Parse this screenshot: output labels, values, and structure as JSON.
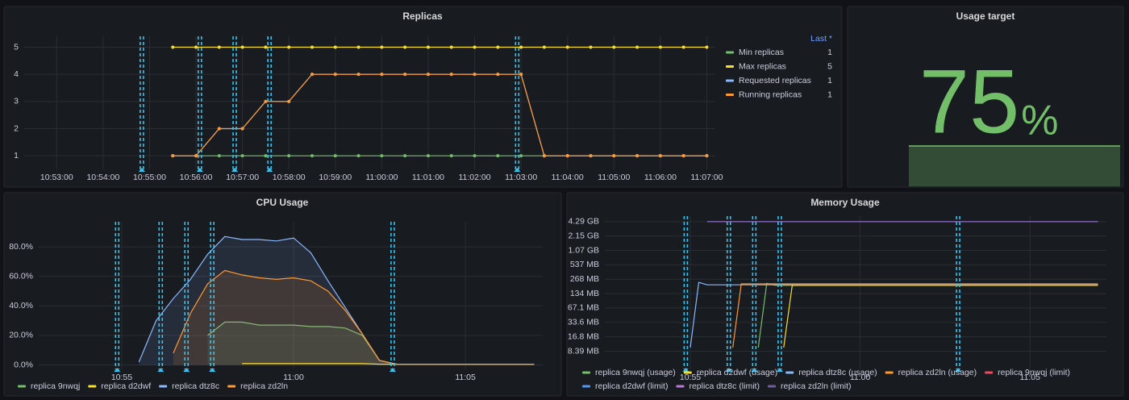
{
  "chart_data": [
    {
      "type": "line",
      "title": "Replicas",
      "x": [
        "10:55:30",
        "10:56:00",
        "10:56:30",
        "10:57:00",
        "10:57:30",
        "10:58:00",
        "10:58:30",
        "10:59:00",
        "10:59:30",
        "11:00:00",
        "11:00:30",
        "11:01:00",
        "11:01:30",
        "11:02:00",
        "11:02:30",
        "11:03:00",
        "11:03:30",
        "11:04:00",
        "11:04:30",
        "11:05:00",
        "11:05:30",
        "11:06:00",
        "11:06:30",
        "11:07:00"
      ],
      "series": [
        {
          "name": "Min replicas",
          "color": "#73bf69",
          "last": "1",
          "values": [
            1,
            1,
            1,
            1,
            1,
            1,
            1,
            1,
            1,
            1,
            1,
            1,
            1,
            1,
            1,
            1,
            1,
            1,
            1,
            1,
            1,
            1,
            1,
            1
          ]
        },
        {
          "name": "Max replicas",
          "color": "#fade2a",
          "last": "5",
          "values": [
            5,
            5,
            5,
            5,
            5,
            5,
            5,
            5,
            5,
            5,
            5,
            5,
            5,
            5,
            5,
            5,
            5,
            5,
            5,
            5,
            5,
            5,
            5,
            5
          ]
        },
        {
          "name": "Requested replicas",
          "color": "#8ab8ff",
          "last": "1",
          "values": [
            1,
            1,
            2,
            2,
            3,
            3,
            4,
            4,
            4,
            4,
            4,
            4,
            4,
            4,
            4,
            4,
            1,
            1,
            1,
            1,
            1,
            1,
            1,
            1
          ]
        },
        {
          "name": "Running replicas",
          "color": "#ff9830",
          "last": "1",
          "values": [
            1,
            1,
            2,
            2,
            3,
            3,
            4,
            4,
            4,
            4,
            4,
            4,
            4,
            4,
            4,
            4,
            1,
            1,
            1,
            1,
            1,
            1,
            1,
            1
          ]
        }
      ],
      "legend_header": "Last *",
      "legend": "right",
      "points": true,
      "grid": true,
      "xlim": [
        "10:52:18",
        "11:07:11"
      ],
      "xticks": [
        "10:53:00",
        "10:54:00",
        "10:55:00",
        "10:56:00",
        "10:57:00",
        "10:58:00",
        "10:59:00",
        "11:00:00",
        "11:01:00",
        "11:02:00",
        "11:03:00",
        "11:04:00",
        "11:05:00",
        "11:06:00",
        "11:07:00"
      ],
      "ylim": [
        0.5,
        5.4
      ],
      "yticks": [
        1,
        2,
        3,
        4,
        5
      ],
      "annotations": [
        "10:54:50",
        "10:56:05",
        "10:56:50",
        "10:57:35",
        "11:02:55"
      ],
      "annotation_color": "#33c4f2"
    },
    {
      "type": "stat",
      "title": "Usage target",
      "value": 75,
      "unit": "%",
      "color": "#73bf69"
    },
    {
      "type": "line",
      "title": "CPU Usage",
      "x": [
        "10:55:30",
        "10:56:00",
        "10:56:30",
        "10:57:00",
        "10:57:30",
        "10:58:00",
        "10:58:30",
        "10:59:00",
        "10:59:30",
        "11:00:00",
        "11:00:30",
        "11:01:00",
        "11:01:30",
        "11:02:00",
        "11:02:30",
        "11:03:00",
        "11:03:30",
        "11:04:00",
        "11:04:30",
        "11:05:00",
        "11:05:30",
        "11:06:00",
        "11:06:30",
        "11:07:00"
      ],
      "series": [
        {
          "name": "replica 9nwqj",
          "color": "#73bf69",
          "values": [
            null,
            null,
            null,
            null,
            20,
            29,
            29,
            27,
            27,
            27,
            26,
            26,
            25,
            20,
            3,
            0.5,
            0.5,
            0.5,
            0.5,
            0.5,
            0.5,
            0.5,
            0.5,
            0.5
          ]
        },
        {
          "name": "replica d2dwf",
          "color": "#fade2a",
          "values": [
            null,
            null,
            null,
            null,
            null,
            null,
            1,
            1,
            1,
            1,
            1,
            1,
            1,
            1,
            0.5,
            0.5,
            0.5,
            0.5,
            0.5,
            0.5,
            0.5,
            0.5,
            0.5,
            0.5
          ]
        },
        {
          "name": "replica dtz8c",
          "color": "#8ab8ff",
          "values": [
            2,
            30,
            45,
            58,
            75,
            87,
            85,
            85,
            84,
            86,
            76,
            57,
            39,
            21,
            3,
            0.5,
            0.5,
            0.5,
            0.5,
            0.5,
            0.5,
            0.5,
            0.5,
            0.5
          ]
        },
        {
          "name": "replica zd2ln",
          "color": "#ff9830",
          "values": [
            null,
            null,
            8,
            35,
            55,
            64,
            61,
            59,
            58,
            59,
            57,
            50,
            37,
            21,
            3,
            0.5,
            0.5,
            0.5,
            0.5,
            0.5,
            0.5,
            0.5,
            0.5,
            0.5
          ]
        }
      ],
      "legend": "bottom",
      "fill": true,
      "grid": true,
      "xlim": [
        "10:52:35",
        "11:07:15"
      ],
      "xticks": [
        "10:55",
        "11:00",
        "11:05"
      ],
      "ylim": [
        -3,
        97
      ],
      "yticks": [
        {
          "value": 0,
          "label": "0.0%"
        },
        {
          "value": 20,
          "label": "20.0%"
        },
        {
          "value": 40,
          "label": "40.0%"
        },
        {
          "value": 60,
          "label": "60.0%"
        },
        {
          "value": 80,
          "label": "80.0%"
        }
      ],
      "annotations": [
        "10:54:52",
        "10:56:08",
        "10:56:53",
        "10:57:38",
        "11:02:53"
      ],
      "annotation_color": "#33c4f2"
    },
    {
      "type": "line",
      "title": "Memory Usage",
      "series": [
        {
          "name": "replica 9nwqj (usage)",
          "color": "#73bf69",
          "x": [
            "10:57:00",
            "10:57:15",
            "10:57:30",
            "11:07:00"
          ],
          "values": [
            10000000,
            220000000,
            200000000,
            200000000
          ]
        },
        {
          "name": "replica d2dwf (usage)",
          "color": "#fade2a",
          "x": [
            "10:57:45",
            "10:58:00",
            "11:07:00"
          ],
          "values": [
            10000000,
            200000000,
            200000000
          ]
        },
        {
          "name": "replica dtz8c (usage)",
          "color": "#8ab8ff",
          "x": [
            "10:55:00",
            "10:55:15",
            "10:55:30",
            "11:07:00"
          ],
          "values": [
            10000000,
            230000000,
            205000000,
            205000000
          ]
        },
        {
          "name": "replica zd2ln (usage)",
          "color": "#ff9830",
          "x": [
            "10:56:15",
            "10:56:30",
            "11:07:00"
          ],
          "values": [
            10000000,
            215000000,
            215000000
          ]
        },
        {
          "name": "replica 9nwqj (limit)",
          "color": "#f2495c",
          "x": [
            "10:55:30",
            "11:07:00"
          ],
          "values": [
            4294967296,
            4294967296
          ]
        },
        {
          "name": "replica d2dwf (limit)",
          "color": "#5794f2",
          "x": [
            "10:55:30",
            "11:07:00"
          ],
          "values": [
            4294967296,
            4294967296
          ]
        },
        {
          "name": "replica dtz8c (limit)",
          "color": "#b877d9",
          "x": [
            "10:55:30",
            "11:07:00"
          ],
          "values": [
            4294967296,
            4294967296
          ]
        },
        {
          "name": "replica zd2ln (limit)",
          "color": "#705da0",
          "x": [
            "10:55:30",
            "11:07:00"
          ],
          "values": [
            4294967296,
            4294967296
          ]
        }
      ],
      "legend": "bottom",
      "log_scale": true,
      "grid": true,
      "xlim": [
        "10:52:29",
        "11:07:15"
      ],
      "xticks": [
        "10:55",
        "11:00",
        "11:05"
      ],
      "ylim": [
        3500000,
        5600000000
      ],
      "yticks": [
        {
          "value": 8388608,
          "label": "8.39 MB"
        },
        {
          "value": 16777216,
          "label": "16.8 MB"
        },
        {
          "value": 33554432,
          "label": "33.6 MB"
        },
        {
          "value": 67108864,
          "label": "67.1 MB"
        },
        {
          "value": 134217728,
          "label": "134 MB"
        },
        {
          "value": 268435456,
          "label": "268 MB"
        },
        {
          "value": 536870912,
          "label": "537 MB"
        },
        {
          "value": 1073741824,
          "label": "1.07 GB"
        },
        {
          "value": 2147483648,
          "label": "2.15 GB"
        },
        {
          "value": 4294967296,
          "label": "4.29 GB"
        }
      ],
      "annotations": [
        "10:54:52",
        "10:56:08",
        "10:56:53",
        "10:57:38",
        "11:02:53"
      ],
      "annotation_color": "#33c4f2"
    }
  ]
}
